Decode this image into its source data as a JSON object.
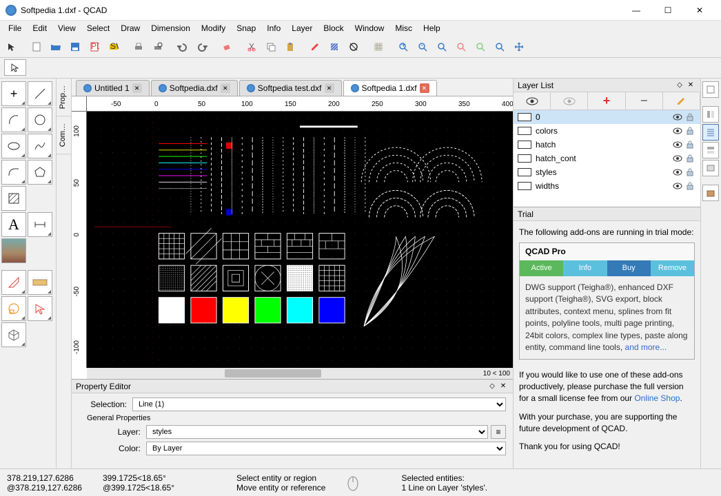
{
  "window": {
    "title": "Softpedia 1.dxf - QCAD",
    "minimize": "—",
    "maximize": "☐",
    "close": "✕"
  },
  "menu": [
    "File",
    "Edit",
    "View",
    "Select",
    "Draw",
    "Dimension",
    "Modify",
    "Snap",
    "Info",
    "Layer",
    "Block",
    "Window",
    "Misc",
    "Help"
  ],
  "tabs": [
    {
      "label": "Untitled 1",
      "active": false
    },
    {
      "label": "Softpedia.dxf",
      "active": false
    },
    {
      "label": "Softpedia test.dxf",
      "active": false
    },
    {
      "label": "Softpedia 1.dxf",
      "active": true
    }
  ],
  "ruler_h": [
    -50,
    0,
    50,
    100,
    150,
    200,
    250,
    300,
    350,
    400
  ],
  "ruler_v": [
    100,
    50,
    0,
    -50,
    -100
  ],
  "canvas": {
    "bg": "#000000",
    "line_colors": [
      "#ff0000",
      "#ffff00",
      "#00ff00",
      "#00ffff",
      "#0000ff",
      "#ff00ff",
      "#ffffff",
      "#808080"
    ],
    "fill_colors": [
      "#ffffff",
      "#ff0000",
      "#ffff00",
      "#00ff00",
      "#00ffff",
      "#0000ff"
    ],
    "red_square": "#dd0000",
    "blue_square": "#0000cc",
    "zoom_info": "10 < 100"
  },
  "layer_panel": {
    "title": "Layer List",
    "layers": [
      {
        "name": "0",
        "selected": true
      },
      {
        "name": "colors",
        "selected": false
      },
      {
        "name": "hatch",
        "selected": false
      },
      {
        "name": "hatch_cont",
        "selected": false
      },
      {
        "name": "styles",
        "selected": false
      },
      {
        "name": "widths",
        "selected": false
      }
    ]
  },
  "trial": {
    "title": "Trial",
    "intro": "The following add-ons are running in trial mode:",
    "product": "QCAD Pro",
    "tabs": [
      {
        "label": "Active",
        "color": "#5cb85c"
      },
      {
        "label": "Info",
        "color": "#5bc0de"
      },
      {
        "label": "Buy",
        "color": "#337ab7"
      },
      {
        "label": "Remove",
        "color": "#5bc0de"
      }
    ],
    "description": "DWG support (Teigha®), enhanced DXF support (Teigha®), SVG export, block attributes, context menu, splines from fit points, polyline tools, multi page printing, 24bit colors, complex line types, paste along entity, command line tools, ",
    "more": "and more...",
    "para2a": "If you would like to use one of these add-ons productively, please purchase the full version for a small license fee from our ",
    "para2link": "Online Shop",
    "para2b": ".",
    "para3": "With your purchase, you are supporting the future development of QCAD.",
    "para4": "Thank you for using QCAD!"
  },
  "property_editor": {
    "title": "Property Editor",
    "selection_label": "Selection:",
    "selection_value": "Line (1)",
    "group": "General Properties",
    "layer_label": "Layer:",
    "layer_value": "styles",
    "color_label": "Color:",
    "color_value": "By Layer"
  },
  "left_vtabs": [
    "Prop…",
    "Com…"
  ],
  "status": {
    "coord1": "378.219,127.6286",
    "coord2": "@378.219,127.6286",
    "coord3": "399.1725<18.65°",
    "coord4": "@399.1725<18.65°",
    "hint1": "Select entity or region",
    "hint2": "Move entity or reference",
    "sel_label": "Selected entities:",
    "sel_value": "1 Line on Layer 'styles'."
  }
}
